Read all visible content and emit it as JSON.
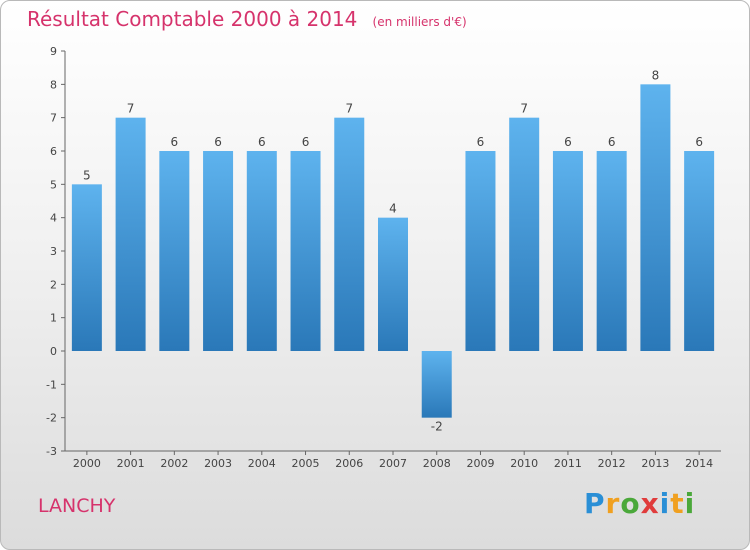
{
  "header": {
    "title": "Résultat Comptable 2000 à 2014",
    "subtitle": "(en milliers d'€)"
  },
  "footer": {
    "commune": "LANCHY",
    "brand": [
      "P",
      "r",
      "o",
      "x",
      "i",
      "t",
      "i"
    ],
    "brand_colors": [
      "#2a8fd6",
      "#f0a020",
      "#4aa83a",
      "#e03c3c",
      "#2a8fd6",
      "#f0a020",
      "#4aa83a"
    ]
  },
  "colors": {
    "accent": "#d6336c",
    "bar_top": "#5eb3ee",
    "bar_bottom": "#2a78b8"
  },
  "chart_data": {
    "type": "bar",
    "categories": [
      "2000",
      "2001",
      "2002",
      "2003",
      "2004",
      "2005",
      "2006",
      "2007",
      "2008",
      "2009",
      "2010",
      "2011",
      "2012",
      "2013",
      "2014"
    ],
    "values": [
      5,
      7,
      6,
      6,
      6,
      6,
      7,
      4,
      -2,
      6,
      7,
      6,
      6,
      8,
      6
    ],
    "ylim": [
      -3,
      9
    ],
    "yticks": [
      -3,
      -2,
      -1,
      0,
      1,
      2,
      3,
      4,
      5,
      6,
      7,
      8,
      9
    ],
    "grid": true,
    "legend": "none"
  }
}
